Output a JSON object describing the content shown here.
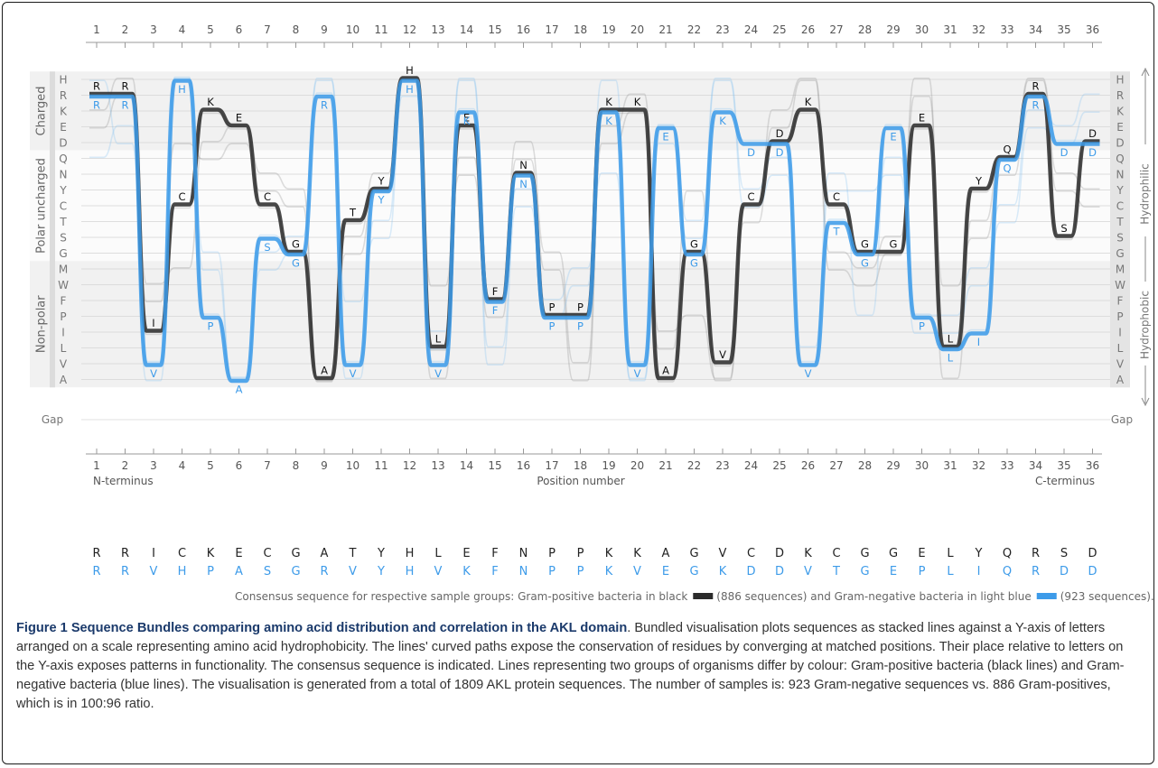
{
  "figure": {
    "label": "Figure 1",
    "title": "Sequence Bundles comparing amino acid distribution and correlation in the AKL domain",
    "caption": ". Bundled visualisation plots sequences as stacked lines against a Y-axis of letters arranged on a scale representing amino acid hydrophobicity. The lines' curved paths expose the conservation of residues by converging at matched positions. Their place relative to letters on the Y-axis exposes patterns in functionality. The consensus sequence is indicated. Lines representing two groups of organisms differ by colour: Gram-positive bacteria (black lines) and Gram-negative bacteria (blue lines). The visualisation is generated from a total of 1809 AKL protein sequences. The number of samples is: 923 Gram-negative sequences vs. 886 Gram-positives, which is in 100:96 ratio."
  },
  "colors": {
    "gram_positive": "#2b2b2b",
    "gram_negative": "#3d9be9",
    "band": "#e6e6e6",
    "grid": "#d4d4d4",
    "caption_title": "#1b3a6b"
  },
  "chart_data": {
    "type": "line",
    "title": "",
    "positions": [
      1,
      2,
      3,
      4,
      5,
      6,
      7,
      8,
      9,
      10,
      11,
      12,
      13,
      14,
      15,
      16,
      17,
      18,
      19,
      20,
      21,
      22,
      23,
      24,
      25,
      26,
      27,
      28,
      29,
      30,
      31,
      32,
      33,
      34,
      35,
      36
    ],
    "xlabel": "Position number",
    "x_start_label": "N-terminus",
    "x_end_label": "C-terminus",
    "y_letters": [
      "H",
      "R",
      "K",
      "E",
      "D",
      "Q",
      "N",
      "Y",
      "C",
      "T",
      "S",
      "G",
      "M",
      "W",
      "F",
      "P",
      "I",
      "L",
      "V",
      "A"
    ],
    "gap_label": "Gap",
    "groups": [
      {
        "name": "Charged",
        "letters": [
          "H",
          "R",
          "K",
          "E",
          "D"
        ]
      },
      {
        "name": "Polar uncharged",
        "letters": [
          "Q",
          "N",
          "Y",
          "C",
          "T",
          "S",
          "G"
        ]
      },
      {
        "name": "Non-polar",
        "letters": [
          "M",
          "W",
          "F",
          "P",
          "I",
          "L",
          "V",
          "A"
        ]
      }
    ],
    "scale_labels": {
      "top": "Hydrophilic",
      "bottom": "Hydrophobic"
    },
    "series": [
      {
        "name": "Gram-positive bacteria",
        "count": 886,
        "consensus": [
          "R",
          "R",
          "I",
          "C",
          "K",
          "E",
          "C",
          "G",
          "A",
          "T",
          "Y",
          "H",
          "L",
          "E",
          "F",
          "N",
          "P",
          "P",
          "K",
          "K",
          "A",
          "G",
          "V",
          "C",
          "D",
          "K",
          "C",
          "G",
          "G",
          "E",
          "L",
          "Y",
          "Q",
          "R",
          "S",
          "D"
        ]
      },
      {
        "name": "Gram-negative bacteria",
        "count": 923,
        "consensus": [
          "R",
          "R",
          "V",
          "H",
          "P",
          "A",
          "S",
          "G",
          "R",
          "V",
          "Y",
          "H",
          "V",
          "K",
          "F",
          "N",
          "P",
          "P",
          "K",
          "V",
          "E",
          "G",
          "K",
          "D",
          "D",
          "V",
          "T",
          "G",
          "E",
          "P",
          "L",
          "I",
          "Q",
          "R",
          "D",
          "D"
        ]
      }
    ],
    "legend": {
      "text_a": "Consensus sequence for respective sample groups: Gram-positive bacteria in black",
      "text_b": "(886 sequences) and Gram-negative bacteria in light blue",
      "text_c": "(923 sequences)."
    }
  }
}
